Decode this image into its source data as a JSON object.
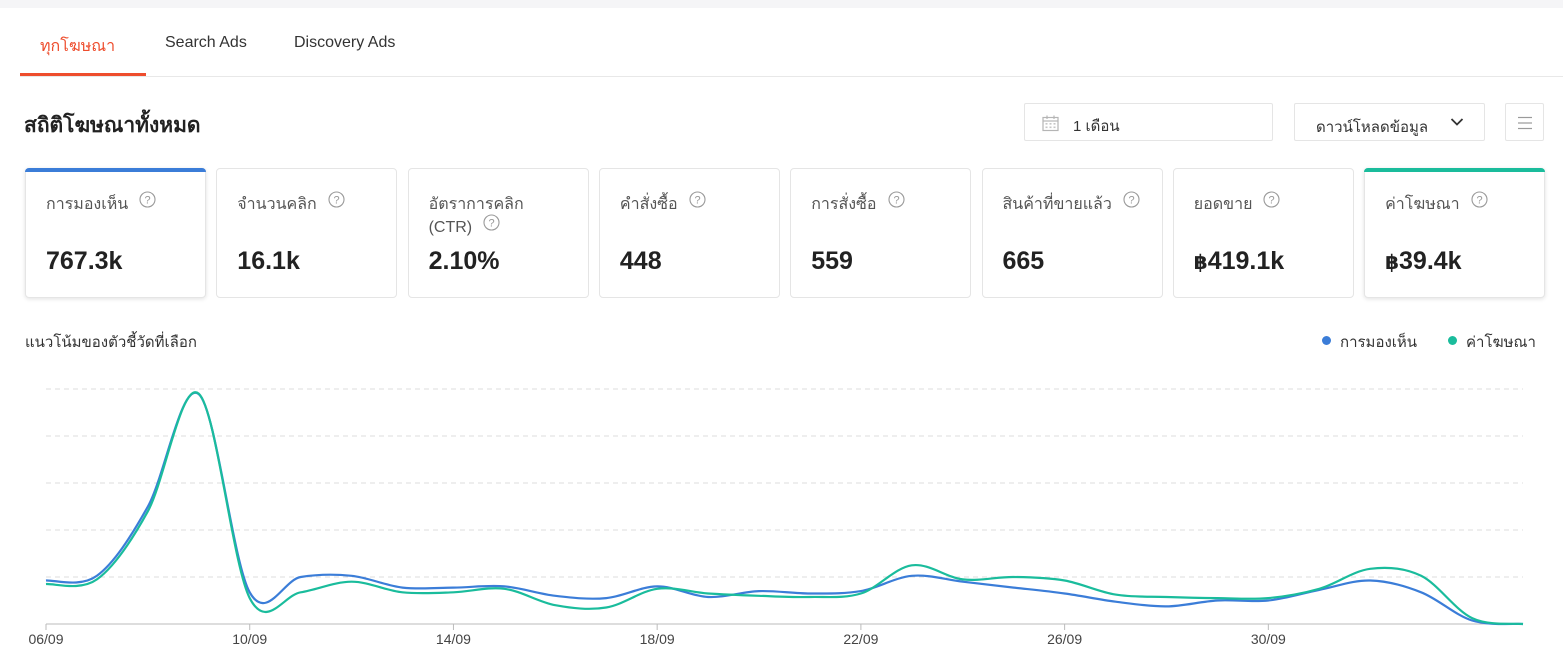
{
  "tabs": [
    "ทุกโฆษณา",
    "Search Ads",
    "Discovery Ads"
  ],
  "section_title": "สถิติโฆษณาทั้งหมด",
  "date_filter": "1 เดือน",
  "download_label": "ดาวน์โหลดข้อมูล",
  "icons": [
    "calendar-icon",
    "chevron-down-icon",
    "menu-icon",
    "help-icon"
  ],
  "colors": {
    "primary": "#ee4d2d",
    "impressions": "#3b7dd8",
    "expense": "#1abc9c"
  },
  "metrics": [
    {
      "label": "การมองเห็น",
      "value": "767.3k",
      "currency": "",
      "selected": true,
      "accent": "#3b7dd8"
    },
    {
      "label": "จำนวนคลิก",
      "value": "16.1k",
      "currency": "",
      "selected": false,
      "accent": ""
    },
    {
      "label": "อัตราการคลิก (CTR)",
      "value": "2.10%",
      "currency": "",
      "selected": false,
      "accent": ""
    },
    {
      "label": "คำสั่งซื้อ",
      "value": "448",
      "currency": "",
      "selected": false,
      "accent": ""
    },
    {
      "label": "การสั่งซื้อ",
      "value": "559",
      "currency": "",
      "selected": false,
      "accent": ""
    },
    {
      "label": "สินค้าที่ขายแล้ว",
      "value": "665",
      "currency": "",
      "selected": false,
      "accent": ""
    },
    {
      "label": "ยอดขาย",
      "value": "419.1k",
      "currency": "฿",
      "selected": false,
      "accent": ""
    },
    {
      "label": "ค่าโฆษณา",
      "value": "39.4k",
      "currency": "฿",
      "selected": true,
      "accent": "#1abc9c"
    }
  ],
  "trend_title": "แนวโน้มของตัวชี้วัดที่เลือก",
  "chart_data": {
    "type": "line",
    "x": [
      "06/09",
      "07/09",
      "08/09",
      "09/09",
      "10/09",
      "11/09",
      "12/09",
      "13/09",
      "14/09",
      "15/09",
      "16/09",
      "17/09",
      "18/09",
      "19/09",
      "20/09",
      "21/09",
      "22/09",
      "23/09",
      "24/09",
      "25/09",
      "26/09",
      "27/09",
      "28/09",
      "29/09",
      "30/09",
      "01/10",
      "02/10",
      "03/10",
      "04/10",
      "05/10"
    ],
    "x_ticks": [
      "06/09",
      "10/09",
      "14/09",
      "18/09",
      "22/09",
      "26/09",
      "30/09"
    ],
    "series": [
      {
        "name": "การมองเห็น",
        "color": "#3b7dd8",
        "values": [
          18.5,
          20.5,
          50,
          97.8,
          13.5,
          20,
          20.5,
          15.5,
          15.5,
          16,
          12,
          11,
          16,
          11.5,
          14,
          13,
          14,
          20.5,
          18,
          15.5,
          13,
          9.5,
          7.5,
          10,
          10,
          14.5,
          18.5,
          13.5,
          1.5,
          0
        ]
      },
      {
        "name": "ค่าโฆษณา",
        "color": "#1abc9c",
        "values": [
          17,
          19,
          48,
          98,
          11,
          13.5,
          18,
          13.5,
          13.5,
          15,
          8,
          7,
          15,
          13,
          12,
          11.5,
          13,
          25,
          19,
          20,
          18.5,
          12.5,
          11.5,
          11,
          11,
          15,
          23.5,
          20.5,
          2.5,
          0
        ]
      }
    ],
    "ylim": [
      0,
      100
    ],
    "grid": true,
    "legend": "top-right"
  }
}
